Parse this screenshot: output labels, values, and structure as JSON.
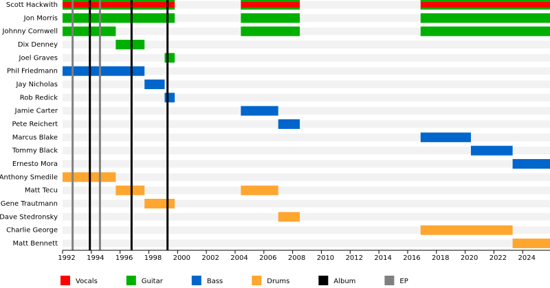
{
  "chart_data": {
    "type": "timeline",
    "series": [
      {
        "name": "Vocals",
        "color": "#ff0000"
      },
      {
        "name": "Guitar",
        "color": "#00b000"
      },
      {
        "name": "Bass",
        "color": "#0066cc"
      },
      {
        "name": "Drums",
        "color": "#ffa630"
      }
    ],
    "markers": [
      {
        "name": "Album",
        "color": "#000000",
        "values": [
          1993.9,
          1996.8,
          1999.3
        ]
      },
      {
        "name": "EP",
        "color": "#808080",
        "values": [
          1992.7,
          1994.6
        ]
      }
    ],
    "members": [
      {
        "name": "Scott Hackwith",
        "roles": [
          0,
          1
        ],
        "periods": [
          [
            1992,
            1999.8
          ],
          [
            2004.4,
            2008.5
          ],
          [
            2016.9,
            2025.9
          ]
        ]
      },
      {
        "name": "Jon Morris",
        "roles": [
          1
        ],
        "periods": [
          [
            1992,
            1999.8
          ],
          [
            2004.4,
            2008.5
          ],
          [
            2016.9,
            2025.9
          ]
        ]
      },
      {
        "name": "Johnny Cornwell",
        "roles": [
          1
        ],
        "periods": [
          [
            1992,
            1995.7
          ],
          [
            2004.4,
            2008.5
          ],
          [
            2016.9,
            2025.9
          ]
        ]
      },
      {
        "name": "Dix Denney",
        "roles": [
          1
        ],
        "periods": [
          [
            1995.7,
            1997.7
          ]
        ]
      },
      {
        "name": "Joel Graves",
        "roles": [
          1
        ],
        "periods": [
          [
            1999.1,
            1999.8
          ]
        ]
      },
      {
        "name": "Phil Friedmann",
        "roles": [
          2
        ],
        "periods": [
          [
            1992,
            1997.7
          ]
        ]
      },
      {
        "name": "Jay Nicholas",
        "roles": [
          2
        ],
        "periods": [
          [
            1997.7,
            1999.1
          ]
        ]
      },
      {
        "name": "Rob Redick",
        "roles": [
          2
        ],
        "periods": [
          [
            1999.1,
            1999.8
          ]
        ]
      },
      {
        "name": "Jamie Carter",
        "roles": [
          2
        ],
        "periods": [
          [
            2004.4,
            2007.0
          ]
        ]
      },
      {
        "name": "Pete Reichert",
        "roles": [
          2
        ],
        "periods": [
          [
            2007.0,
            2008.5
          ]
        ]
      },
      {
        "name": "Marcus Blake",
        "roles": [
          2
        ],
        "periods": [
          [
            2016.9,
            2020.4
          ]
        ]
      },
      {
        "name": "Tommy Black",
        "roles": [
          2
        ],
        "periods": [
          [
            2020.4,
            2023.3
          ]
        ]
      },
      {
        "name": "Ernesto Mora",
        "roles": [
          2
        ],
        "periods": [
          [
            2023.3,
            2025.9
          ]
        ]
      },
      {
        "name": "Anthony Smedile",
        "roles": [
          3
        ],
        "periods": [
          [
            1992,
            1995.7
          ]
        ]
      },
      {
        "name": "Matt Tecu",
        "roles": [
          3
        ],
        "periods": [
          [
            1995.7,
            1997.7
          ],
          [
            2004.4,
            2007.0
          ]
        ]
      },
      {
        "name": "Gene Trautmann",
        "roles": [
          3
        ],
        "periods": [
          [
            1997.7,
            1999.8
          ]
        ]
      },
      {
        "name": "Dave Stedronsky",
        "roles": [
          3
        ],
        "periods": [
          [
            2007.0,
            2008.5
          ]
        ]
      },
      {
        "name": "Charlie George",
        "roles": [
          3
        ],
        "periods": [
          [
            2016.9,
            2023.3
          ]
        ]
      },
      {
        "name": "Matt Bennett",
        "roles": [
          3
        ],
        "periods": [
          [
            2023.3,
            2025.9
          ]
        ]
      }
    ],
    "xlim": [
      1992,
      2025.9
    ],
    "xticks": [
      1992,
      1994,
      1996,
      1998,
      2000,
      2002,
      2004,
      2006,
      2008,
      2010,
      2012,
      2014,
      2016,
      2018,
      2020,
      2022,
      2024
    ]
  }
}
